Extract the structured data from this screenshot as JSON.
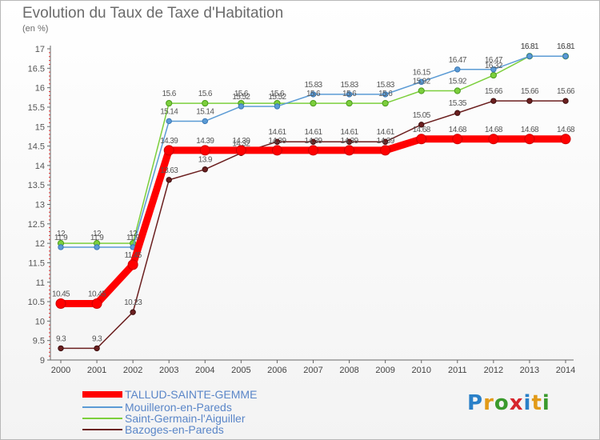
{
  "chart_data": {
    "type": "line",
    "title": "Evolution du Taux de Taxe d'Habitation",
    "ylabel": "(en %)",
    "xlabel": "",
    "ylim": [
      9,
      17
    ],
    "yticks": [
      "9",
      "9.5",
      "10",
      "10.5",
      "11",
      "11.5",
      "12",
      "12.5",
      "13",
      "13.5",
      "14",
      "14.5",
      "15",
      "15.5",
      "16",
      "16.5",
      "17"
    ],
    "x": [
      "2000",
      "2001",
      "2002",
      "2003",
      "2004",
      "2005",
      "2006",
      "2007",
      "2008",
      "2009",
      "2010",
      "2011",
      "2012",
      "2013",
      "2014"
    ],
    "grid": false,
    "legend_position": "bottom-left",
    "series": [
      {
        "name": "TALLUD-SAINTE-GEMME",
        "color": "#ff0000",
        "values": [
          10.45,
          10.45,
          11.45,
          14.39,
          14.39,
          14.39,
          14.39,
          14.39,
          14.39,
          14.39,
          14.68,
          14.68,
          14.68,
          14.68,
          14.68
        ],
        "labels": [
          "10.45",
          "10.45",
          "11.45",
          "14.39",
          "14.39",
          "14.39",
          "14.39",
          "14.39",
          "14.39",
          "14.39",
          "14.68",
          "14.68",
          "14.68",
          "14.68",
          "14.68"
        ]
      },
      {
        "name": "Mouilleron-en-Pareds",
        "color": "#5b9bd5",
        "values": [
          11.9,
          11.9,
          11.9,
          15.14,
          15.14,
          15.52,
          15.52,
          15.83,
          15.83,
          15.83,
          16.15,
          16.47,
          16.47,
          16.81,
          16.81
        ],
        "labels": [
          "11.9",
          "11.9",
          "11.9",
          "15.14",
          "15.14",
          "15.52",
          "15.52",
          "15.83",
          "15.83",
          "15.83",
          "16.15",
          "16.47",
          "16.47",
          "16.81",
          "16.81"
        ]
      },
      {
        "name": "Saint-Germain-l'Aiguiller",
        "color": "#7ccf3c",
        "values": [
          12,
          12,
          12,
          15.6,
          15.6,
          15.6,
          15.6,
          15.6,
          15.6,
          15.6,
          15.92,
          15.92,
          16.32,
          16.81,
          16.81
        ],
        "labels": [
          "12",
          "12",
          "12",
          "15.6",
          "15.6",
          "15.6",
          "15.6",
          "15.6",
          "15.6",
          "15.6",
          "15.92",
          "15.92",
          "16.32",
          "16.81",
          "16.81"
        ]
      },
      {
        "name": "Bazoges-en-Pareds",
        "color": "#6b1f1f",
        "values": [
          9.3,
          9.3,
          10.23,
          13.63,
          13.9,
          14.32,
          14.61,
          14.61,
          14.61,
          14.61,
          15.05,
          15.35,
          15.66,
          15.66,
          15.66
        ],
        "labels": [
          "9.3",
          "9.3",
          "10.23",
          "13.63",
          "13.9",
          "14.32",
          "14.61",
          "14.61",
          "14.61",
          "14.61",
          "15.05",
          "15.35",
          "15.66",
          "15.66",
          "15.66"
        ]
      }
    ]
  },
  "logo": {
    "letters": [
      "P",
      "r",
      "o",
      "x",
      "i",
      "t",
      "i"
    ]
  }
}
